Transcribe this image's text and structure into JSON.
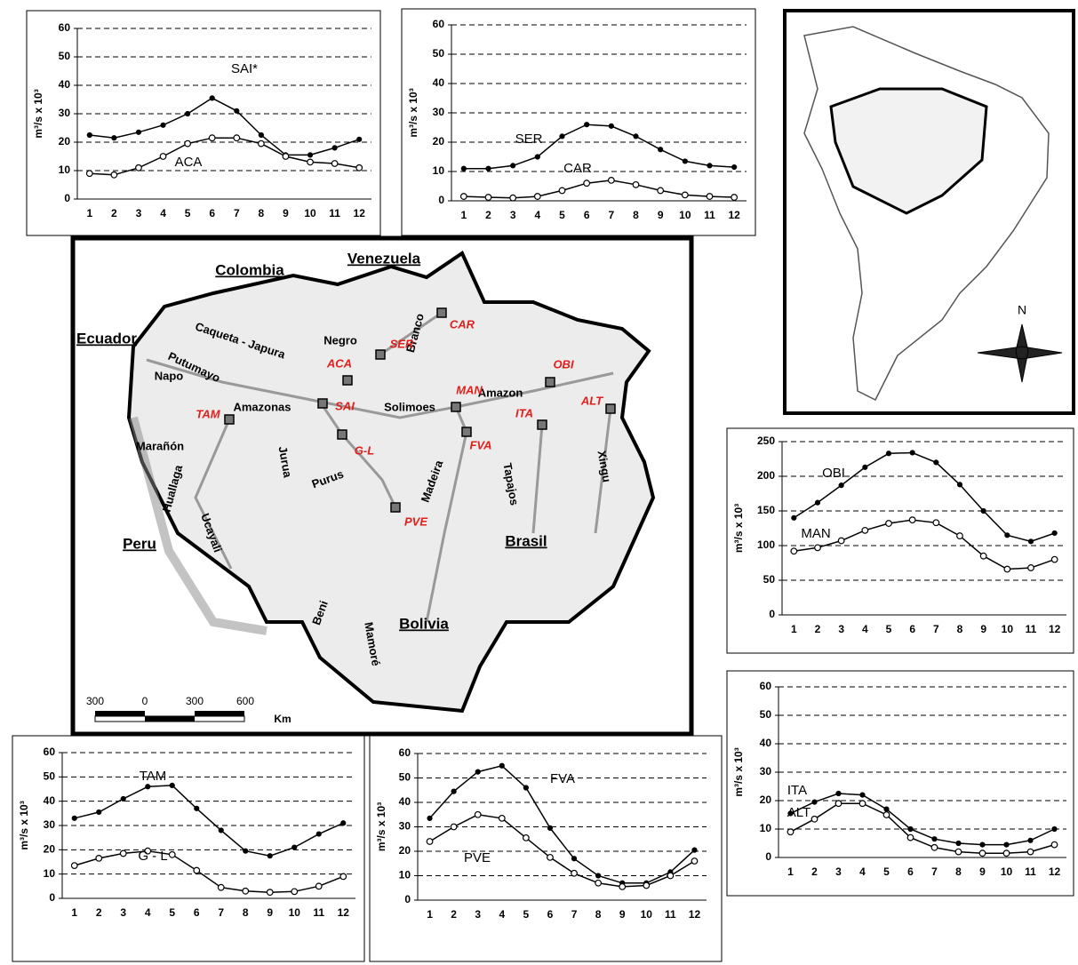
{
  "chart_data": [
    {
      "type": "line",
      "ylabel": "m³/s x 10³",
      "categories": [
        1,
        2,
        3,
        4,
        5,
        6,
        7,
        8,
        9,
        10,
        11,
        12
      ],
      "ylim": [
        0,
        60
      ],
      "yticks": [
        0,
        10,
        20,
        30,
        40,
        50,
        60
      ],
      "grid": true,
      "series": [
        {
          "name": "SAI*",
          "color": "#000000",
          "marker": "filled",
          "values": [
            22.5,
            21.5,
            23.5,
            26,
            30,
            35.5,
            31,
            22.5,
            15.5,
            15.5,
            18,
            21
          ]
        },
        {
          "name": "ACA",
          "color": "#000000",
          "marker": "open",
          "values": [
            9,
            8.5,
            11,
            15,
            19.5,
            21.5,
            21.5,
            19.5,
            15,
            13,
            12.5,
            11
          ]
        }
      ]
    },
    {
      "type": "line",
      "ylabel": "m³/s x 10³",
      "categories": [
        1,
        2,
        3,
        4,
        5,
        6,
        7,
        8,
        9,
        10,
        11,
        12
      ],
      "ylim": [
        0,
        60
      ],
      "yticks": [
        0,
        10,
        20,
        30,
        40,
        50,
        60
      ],
      "grid": true,
      "series": [
        {
          "name": "SER",
          "color": "#000000",
          "marker": "filled",
          "values": [
            11,
            11,
            12,
            15,
            22,
            26,
            25.5,
            22,
            17.5,
            13.5,
            12,
            11.5
          ]
        },
        {
          "name": "CAR",
          "color": "#000000",
          "marker": "open",
          "values": [
            1.5,
            1.2,
            1,
            1.5,
            3.5,
            6,
            7,
            5.5,
            3.5,
            2,
            1.5,
            1.2
          ]
        }
      ]
    },
    {
      "type": "line",
      "ylabel": "m³/s x 10³",
      "categories": [
        1,
        2,
        3,
        4,
        5,
        6,
        7,
        8,
        9,
        10,
        11,
        12
      ],
      "ylim": [
        0,
        250
      ],
      "yticks": [
        0,
        50,
        100,
        150,
        200,
        250
      ],
      "grid": true,
      "series": [
        {
          "name": "OBI",
          "color": "#000000",
          "marker": "filled",
          "values": [
            140,
            162,
            187,
            213,
            233,
            234,
            220,
            188,
            150,
            115,
            106,
            118
          ]
        },
        {
          "name": "MAN",
          "color": "#000000",
          "marker": "open",
          "values": [
            92,
            97,
            107,
            122,
            132,
            137,
            133,
            114,
            85,
            66,
            68,
            80
          ]
        }
      ]
    },
    {
      "type": "line",
      "ylabel": "m³/s x 10³",
      "categories": [
        1,
        2,
        3,
        4,
        5,
        6,
        7,
        8,
        9,
        10,
        11,
        12
      ],
      "ylim": [
        0,
        60
      ],
      "yticks": [
        0,
        10,
        20,
        30,
        40,
        50,
        60
      ],
      "grid": true,
      "series": [
        {
          "name": "ITA",
          "color": "#000000",
          "marker": "filled",
          "values": [
            15.5,
            19.5,
            22.5,
            22,
            17,
            10,
            6.5,
            5,
            4.5,
            4.5,
            6,
            10
          ]
        },
        {
          "name": "ALT",
          "color": "#000000",
          "marker": "open",
          "values": [
            9,
            13.5,
            19,
            19,
            15,
            7,
            3.5,
            2,
            1.5,
            1.5,
            2,
            4.5
          ]
        }
      ]
    },
    {
      "type": "line",
      "ylabel": "m³/s x 10³",
      "categories": [
        1,
        2,
        3,
        4,
        5,
        6,
        7,
        8,
        9,
        10,
        11,
        12
      ],
      "ylim": [
        0,
        60
      ],
      "yticks": [
        0,
        10,
        20,
        30,
        40,
        50,
        60
      ],
      "grid": true,
      "series": [
        {
          "name": "TAM",
          "color": "#000000",
          "marker": "filled",
          "values": [
            33,
            35.5,
            41,
            46,
            46.5,
            37,
            28,
            19.5,
            17.5,
            21,
            26.5,
            31
          ]
        },
        {
          "name": "G - L",
          "color": "#000000",
          "marker": "open",
          "values": [
            13.5,
            16.5,
            18.5,
            19.5,
            18,
            11.5,
            4.5,
            3,
            2.5,
            2.8,
            5,
            9
          ]
        }
      ]
    },
    {
      "type": "line",
      "ylabel": "m³/s x 10³",
      "categories": [
        1,
        2,
        3,
        4,
        5,
        6,
        7,
        8,
        9,
        10,
        11,
        12
      ],
      "ylim": [
        0,
        60
      ],
      "yticks": [
        0,
        10,
        20,
        30,
        40,
        50,
        60
      ],
      "grid": true,
      "series": [
        {
          "name": "FVA",
          "color": "#000000",
          "marker": "filled",
          "values": [
            33.5,
            44.5,
            52.5,
            55,
            46,
            29.5,
            17,
            10,
            7,
            7,
            11.5,
            20.5
          ]
        },
        {
          "name": "PVE",
          "color": "#000000",
          "marker": "open",
          "values": [
            24,
            30,
            35,
            33.5,
            25.5,
            17.5,
            11,
            7,
            5.5,
            6,
            10,
            16
          ]
        }
      ]
    }
  ],
  "map": {
    "countries": [
      "Colombia",
      "Venezuela",
      "Ecuador",
      "Peru",
      "Brasil",
      "Bolivia"
    ],
    "rivers": [
      "Caqueta - Japura",
      "Negro",
      "Branco",
      "Putumayo",
      "Napo",
      "Amazonas",
      "Solimoes",
      "Amazon",
      "Marañón",
      "Huallaga",
      "Ucayali",
      "Jurua",
      "Purus",
      "Madeira",
      "Tapajos",
      "Xingu",
      "Beni",
      "Mamoré"
    ],
    "stations": [
      "CAR",
      "SER",
      "ACA",
      "SAI",
      "TAM",
      "G-L",
      "PVE",
      "FVA",
      "MAN",
      "ITA",
      "OBI",
      "ALT"
    ],
    "scale": [
      "300",
      "0",
      "300",
      "600",
      "Km"
    ],
    "compass": "N"
  }
}
